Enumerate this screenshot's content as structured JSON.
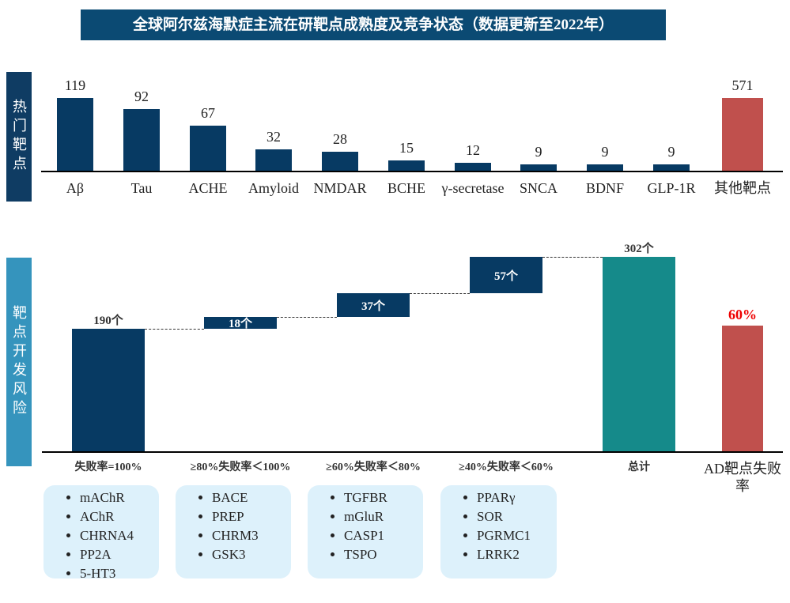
{
  "title": "全球阿尔兹海默症主流在研靶点成熟度及竞争状态（数据更新至2022年）",
  "side_labels": {
    "top": "热门靶点",
    "bottom": "靶点开发风险"
  },
  "colors": {
    "navy": "#073a63",
    "red": "#c0504d",
    "teal": "#158a8a"
  },
  "chart_data": [
    {
      "type": "bar",
      "title": "热门靶点",
      "categories": [
        "Aβ",
        "Tau",
        "ACHE",
        "Amyloid",
        "NMDAR",
        "BCHE",
        "γ-secretase",
        "SNCA",
        "BDNF",
        "GLP-1R",
        "其他靶点"
      ],
      "values": [
        119,
        92,
        67,
        32,
        28,
        15,
        12,
        9,
        9,
        9,
        571
      ],
      "highlight": "其他靶点"
    },
    {
      "type": "waterfall",
      "title": "靶点开发风险",
      "categories": [
        "失败率=100%",
        "≥80%失败率＜100%",
        "≥60%失败率＜80%",
        "≥40%失败率＜60%",
        "总计"
      ],
      "values": [
        190,
        18,
        37,
        57,
        302
      ],
      "value_labels": [
        "190个",
        "18个",
        "37个",
        "57个",
        "302个"
      ],
      "extra": {
        "category": "AD靶点失败率",
        "value": 60,
        "label": "60%"
      }
    }
  ],
  "target_lists": [
    [
      "mAChR",
      "AChR",
      "CHRNA4",
      "PP2A",
      "5-HT3"
    ],
    [
      "BACE",
      "PREP",
      "CHRM3",
      "GSK3"
    ],
    [
      "TGFBR",
      "mGluR",
      "CASP1",
      "TSPO"
    ],
    [
      "PPARγ",
      "SOR",
      "PGRMC1",
      "LRRK2"
    ]
  ]
}
